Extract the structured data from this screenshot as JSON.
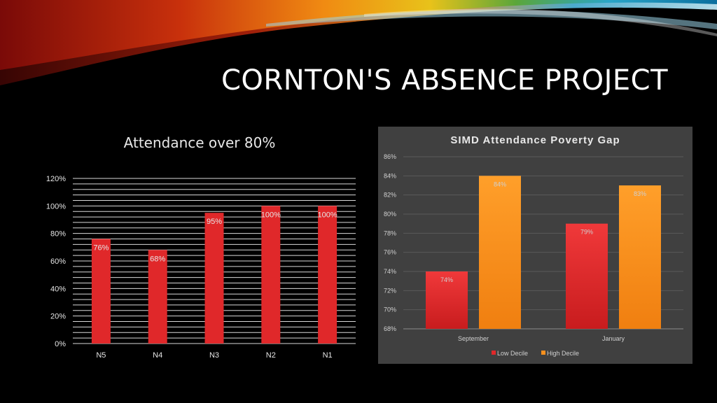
{
  "slide": {
    "title": "CORNTON'S ABSENCE PROJECT"
  },
  "colors": {
    "background": "#000000",
    "bar_red": "#e0282a",
    "bar_orange": "#f7901e",
    "panel": "#404040"
  },
  "chart_data": [
    {
      "type": "bar",
      "title": "Attendance over 80%",
      "categories": [
        "N5",
        "N4",
        "N3",
        "N2",
        "N1"
      ],
      "values": [
        76,
        68,
        95,
        100,
        100
      ],
      "data_labels": [
        "76%",
        "68%",
        "95%",
        "100%",
        "100%"
      ],
      "y_ticks": [
        "0%",
        "20%",
        "40%",
        "60%",
        "80%",
        "100%",
        "120%"
      ],
      "ylim": [
        0,
        120
      ],
      "grid": true
    },
    {
      "type": "bar",
      "title": "SIMD Attendance Poverty Gap",
      "categories": [
        "September",
        "January"
      ],
      "series": [
        {
          "name": "Low Decile",
          "values": [
            74,
            79
          ],
          "labels": [
            "74%",
            "79%"
          ]
        },
        {
          "name": "High Decile",
          "values": [
            84,
            83
          ],
          "labels": [
            "84%",
            "83%"
          ]
        }
      ],
      "y_ticks": [
        "68%",
        "70%",
        "72%",
        "74%",
        "76%",
        "78%",
        "80%",
        "82%",
        "84%",
        "86%"
      ],
      "ylim": [
        68,
        86
      ],
      "grid": true,
      "legend": "bottom"
    }
  ]
}
